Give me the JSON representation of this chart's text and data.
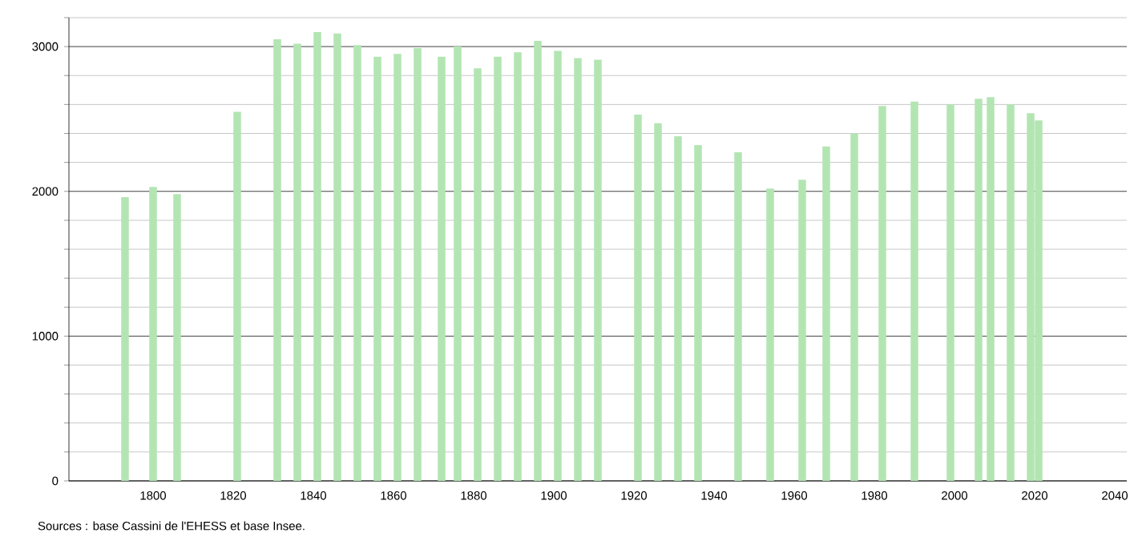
{
  "chart_data": {
    "type": "bar",
    "x": [
      1793,
      1800,
      1806,
      1821,
      1831,
      1836,
      1841,
      1846,
      1851,
      1856,
      1861,
      1866,
      1872,
      1876,
      1881,
      1886,
      1891,
      1896,
      1901,
      1906,
      1911,
      1921,
      1926,
      1931,
      1936,
      1946,
      1954,
      1962,
      1968,
      1975,
      1982,
      1990,
      1999,
      2006,
      2009,
      2014,
      2019,
      2021
    ],
    "values": [
      1960,
      2030,
      1980,
      2550,
      3050,
      3020,
      3100,
      3090,
      3010,
      2930,
      2950,
      2990,
      2930,
      3000,
      2850,
      2930,
      2960,
      3040,
      2970,
      2920,
      2910,
      2530,
      2470,
      2380,
      2320,
      2270,
      2020,
      2080,
      2310,
      2400,
      2590,
      2620,
      2600,
      2640,
      2650,
      2600,
      2540,
      2490
    ],
    "color": "#b3e5b2",
    "xlim": [
      1779,
      2043
    ],
    "xticks": [
      1800,
      1820,
      1840,
      1860,
      1880,
      1900,
      1920,
      1940,
      1960,
      1980,
      2000,
      2020,
      2040
    ],
    "ylim": [
      0,
      3200
    ],
    "yticks": [
      0,
      {
        "value": 200,
        "label": null
      },
      {
        "value": 400,
        "label": null
      },
      {
        "value": 600,
        "label": null
      },
      {
        "value": 800,
        "label": null
      },
      1000,
      {
        "value": 1200,
        "label": null
      },
      {
        "value": 1400,
        "label": null
      },
      {
        "value": 1600,
        "label": null
      },
      {
        "value": 1800,
        "label": null
      },
      2000,
      {
        "value": 2200,
        "label": null
      },
      {
        "value": 2400,
        "label": null
      },
      {
        "value": 2600,
        "label": null
      },
      {
        "value": 2800,
        "label": null
      },
      3000,
      {
        "value": 3200,
        "label": null
      }
    ],
    "grid": "y",
    "annotations": [
      "Sources : base Cassini de l'EHESS et base Insee."
    ]
  }
}
